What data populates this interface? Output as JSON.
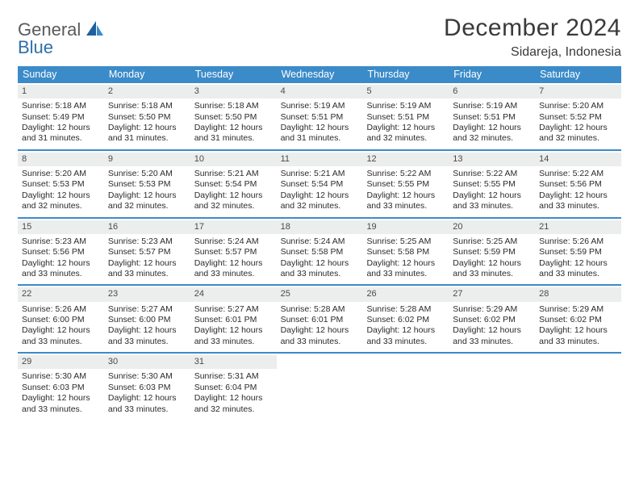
{
  "logo": {
    "line1": "General",
    "line2": "Blue"
  },
  "title": "December 2024",
  "location": "Sidareja, Indonesia",
  "colors": {
    "header_bg": "#3b8bc9",
    "header_text": "#ffffff",
    "daynum_bg": "#eceded",
    "rule": "#3b8bc9",
    "text": "#333333",
    "logo_gray": "#5a5a5a",
    "logo_blue": "#2f6fa8"
  },
  "days_of_week": [
    "Sunday",
    "Monday",
    "Tuesday",
    "Wednesday",
    "Thursday",
    "Friday",
    "Saturday"
  ],
  "weeks": [
    [
      {
        "n": "1",
        "sr": "Sunrise: 5:18 AM",
        "ss": "Sunset: 5:49 PM",
        "d1": "Daylight: 12 hours",
        "d2": "and 31 minutes."
      },
      {
        "n": "2",
        "sr": "Sunrise: 5:18 AM",
        "ss": "Sunset: 5:50 PM",
        "d1": "Daylight: 12 hours",
        "d2": "and 31 minutes."
      },
      {
        "n": "3",
        "sr": "Sunrise: 5:18 AM",
        "ss": "Sunset: 5:50 PM",
        "d1": "Daylight: 12 hours",
        "d2": "and 31 minutes."
      },
      {
        "n": "4",
        "sr": "Sunrise: 5:19 AM",
        "ss": "Sunset: 5:51 PM",
        "d1": "Daylight: 12 hours",
        "d2": "and 31 minutes."
      },
      {
        "n": "5",
        "sr": "Sunrise: 5:19 AM",
        "ss": "Sunset: 5:51 PM",
        "d1": "Daylight: 12 hours",
        "d2": "and 32 minutes."
      },
      {
        "n": "6",
        "sr": "Sunrise: 5:19 AM",
        "ss": "Sunset: 5:51 PM",
        "d1": "Daylight: 12 hours",
        "d2": "and 32 minutes."
      },
      {
        "n": "7",
        "sr": "Sunrise: 5:20 AM",
        "ss": "Sunset: 5:52 PM",
        "d1": "Daylight: 12 hours",
        "d2": "and 32 minutes."
      }
    ],
    [
      {
        "n": "8",
        "sr": "Sunrise: 5:20 AM",
        "ss": "Sunset: 5:53 PM",
        "d1": "Daylight: 12 hours",
        "d2": "and 32 minutes."
      },
      {
        "n": "9",
        "sr": "Sunrise: 5:20 AM",
        "ss": "Sunset: 5:53 PM",
        "d1": "Daylight: 12 hours",
        "d2": "and 32 minutes."
      },
      {
        "n": "10",
        "sr": "Sunrise: 5:21 AM",
        "ss": "Sunset: 5:54 PM",
        "d1": "Daylight: 12 hours",
        "d2": "and 32 minutes."
      },
      {
        "n": "11",
        "sr": "Sunrise: 5:21 AM",
        "ss": "Sunset: 5:54 PM",
        "d1": "Daylight: 12 hours",
        "d2": "and 32 minutes."
      },
      {
        "n": "12",
        "sr": "Sunrise: 5:22 AM",
        "ss": "Sunset: 5:55 PM",
        "d1": "Daylight: 12 hours",
        "d2": "and 33 minutes."
      },
      {
        "n": "13",
        "sr": "Sunrise: 5:22 AM",
        "ss": "Sunset: 5:55 PM",
        "d1": "Daylight: 12 hours",
        "d2": "and 33 minutes."
      },
      {
        "n": "14",
        "sr": "Sunrise: 5:22 AM",
        "ss": "Sunset: 5:56 PM",
        "d1": "Daylight: 12 hours",
        "d2": "and 33 minutes."
      }
    ],
    [
      {
        "n": "15",
        "sr": "Sunrise: 5:23 AM",
        "ss": "Sunset: 5:56 PM",
        "d1": "Daylight: 12 hours",
        "d2": "and 33 minutes."
      },
      {
        "n": "16",
        "sr": "Sunrise: 5:23 AM",
        "ss": "Sunset: 5:57 PM",
        "d1": "Daylight: 12 hours",
        "d2": "and 33 minutes."
      },
      {
        "n": "17",
        "sr": "Sunrise: 5:24 AM",
        "ss": "Sunset: 5:57 PM",
        "d1": "Daylight: 12 hours",
        "d2": "and 33 minutes."
      },
      {
        "n": "18",
        "sr": "Sunrise: 5:24 AM",
        "ss": "Sunset: 5:58 PM",
        "d1": "Daylight: 12 hours",
        "d2": "and 33 minutes."
      },
      {
        "n": "19",
        "sr": "Sunrise: 5:25 AM",
        "ss": "Sunset: 5:58 PM",
        "d1": "Daylight: 12 hours",
        "d2": "and 33 minutes."
      },
      {
        "n": "20",
        "sr": "Sunrise: 5:25 AM",
        "ss": "Sunset: 5:59 PM",
        "d1": "Daylight: 12 hours",
        "d2": "and 33 minutes."
      },
      {
        "n": "21",
        "sr": "Sunrise: 5:26 AM",
        "ss": "Sunset: 5:59 PM",
        "d1": "Daylight: 12 hours",
        "d2": "and 33 minutes."
      }
    ],
    [
      {
        "n": "22",
        "sr": "Sunrise: 5:26 AM",
        "ss": "Sunset: 6:00 PM",
        "d1": "Daylight: 12 hours",
        "d2": "and 33 minutes."
      },
      {
        "n": "23",
        "sr": "Sunrise: 5:27 AM",
        "ss": "Sunset: 6:00 PM",
        "d1": "Daylight: 12 hours",
        "d2": "and 33 minutes."
      },
      {
        "n": "24",
        "sr": "Sunrise: 5:27 AM",
        "ss": "Sunset: 6:01 PM",
        "d1": "Daylight: 12 hours",
        "d2": "and 33 minutes."
      },
      {
        "n": "25",
        "sr": "Sunrise: 5:28 AM",
        "ss": "Sunset: 6:01 PM",
        "d1": "Daylight: 12 hours",
        "d2": "and 33 minutes."
      },
      {
        "n": "26",
        "sr": "Sunrise: 5:28 AM",
        "ss": "Sunset: 6:02 PM",
        "d1": "Daylight: 12 hours",
        "d2": "and 33 minutes."
      },
      {
        "n": "27",
        "sr": "Sunrise: 5:29 AM",
        "ss": "Sunset: 6:02 PM",
        "d1": "Daylight: 12 hours",
        "d2": "and 33 minutes."
      },
      {
        "n": "28",
        "sr": "Sunrise: 5:29 AM",
        "ss": "Sunset: 6:02 PM",
        "d1": "Daylight: 12 hours",
        "d2": "and 33 minutes."
      }
    ],
    [
      {
        "n": "29",
        "sr": "Sunrise: 5:30 AM",
        "ss": "Sunset: 6:03 PM",
        "d1": "Daylight: 12 hours",
        "d2": "and 33 minutes."
      },
      {
        "n": "30",
        "sr": "Sunrise: 5:30 AM",
        "ss": "Sunset: 6:03 PM",
        "d1": "Daylight: 12 hours",
        "d2": "and 33 minutes."
      },
      {
        "n": "31",
        "sr": "Sunrise: 5:31 AM",
        "ss": "Sunset: 6:04 PM",
        "d1": "Daylight: 12 hours",
        "d2": "and 32 minutes."
      },
      null,
      null,
      null,
      null
    ]
  ]
}
